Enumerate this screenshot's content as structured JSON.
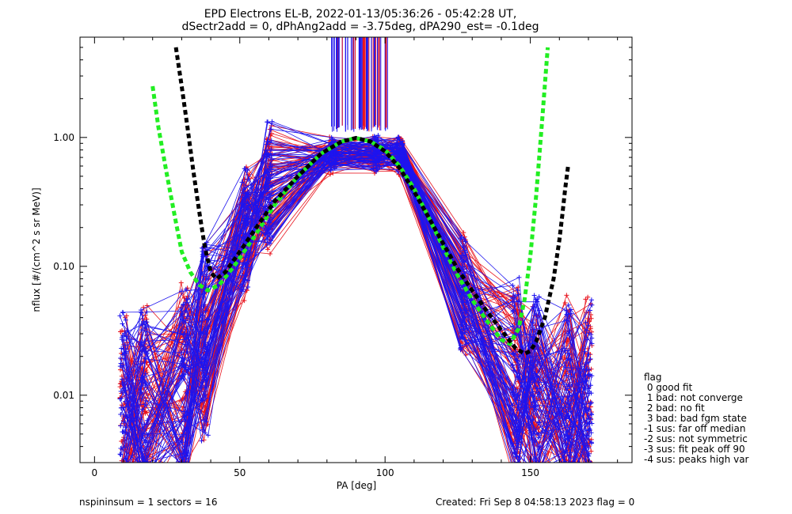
{
  "chart_data": {
    "type": "line",
    "title": "EPD Electrons EL-B, 2022-01-13/05:36:26 - 05:42:28 UT,",
    "subtitle": "dSectr2add = 0, dPhAng2add = -3.75deg, dPA290_est=  -0.1deg",
    "xlabel": "PA [deg]",
    "ylabel": "nflux [#/(cm^2 s sr MeV)]",
    "xlim": [
      -5,
      185
    ],
    "ylim": [
      0.003,
      6.0
    ],
    "yscale": "log",
    "xticks": [
      0,
      50,
      100,
      150
    ],
    "xtick_labels": [
      "0",
      "50",
      "100",
      "150"
    ],
    "yticks": [
      0.01,
      0.1,
      1.0
    ],
    "ytick_labels": [
      "0.01",
      "0.10",
      "1.00"
    ],
    "grid": false,
    "colors": {
      "red": "#e8141e",
      "blue": "#1e14ee",
      "green": "#22ee22",
      "black": "#000000"
    },
    "series": [
      {
        "color": "green",
        "style": "dashed",
        "x": [
          20,
          22,
          25,
          28,
          30,
          33,
          36,
          39,
          43,
          48,
          55,
          62,
          70,
          78,
          85,
          90,
          95,
          100,
          105,
          110,
          115,
          120,
          125,
          130,
          135,
          140,
          143,
          146,
          148,
          150,
          152,
          154,
          156
        ],
        "y": [
          2.5,
          1.2,
          0.5,
          0.22,
          0.13,
          0.09,
          0.072,
          0.065,
          0.072,
          0.1,
          0.17,
          0.3,
          0.5,
          0.75,
          0.93,
          0.99,
          0.93,
          0.8,
          0.6,
          0.4,
          0.24,
          0.14,
          0.085,
          0.055,
          0.038,
          0.027,
          0.025,
          0.033,
          0.055,
          0.12,
          0.35,
          1.3,
          5.0
        ]
      },
      {
        "color": "black",
        "style": "dashed",
        "x": [
          28,
          30,
          32,
          34,
          36,
          38,
          40,
          42,
          45,
          50,
          55,
          62,
          70,
          78,
          85,
          90,
          95,
          100,
          105,
          110,
          115,
          120,
          125,
          130,
          135,
          140,
          145,
          148,
          150,
          152,
          155,
          158,
          160,
          161,
          162,
          163
        ],
        "y": [
          5.0,
          2.5,
          1.2,
          0.55,
          0.27,
          0.14,
          0.09,
          0.08,
          0.09,
          0.13,
          0.19,
          0.32,
          0.5,
          0.75,
          0.93,
          0.99,
          0.93,
          0.78,
          0.58,
          0.38,
          0.24,
          0.15,
          0.095,
          0.065,
          0.045,
          0.032,
          0.023,
          0.021,
          0.022,
          0.026,
          0.04,
          0.08,
          0.16,
          0.25,
          0.4,
          0.6
        ]
      }
    ],
    "scatter_lines": [
      {
        "color": "red",
        "count": 75,
        "seed": 7
      },
      {
        "color": "blue",
        "count": 75,
        "seed": 19
      }
    ],
    "legend": {
      "location": "right",
      "title": "flag",
      "entries": [
        " 0 good fit",
        " 1 bad: not converge",
        " 2 bad: no fit",
        " 3 bad: bad fgm state",
        "-1 sus: far off median",
        "-2 sus: not symmetric",
        "-3 sus: fit peak off 90",
        "-4 sus: peaks high var"
      ]
    }
  },
  "footer": {
    "left": "nspininsum =  1  sectors = 16",
    "right": "Created: Fri Sep  8 04:58:13 2023   flag = 0"
  }
}
